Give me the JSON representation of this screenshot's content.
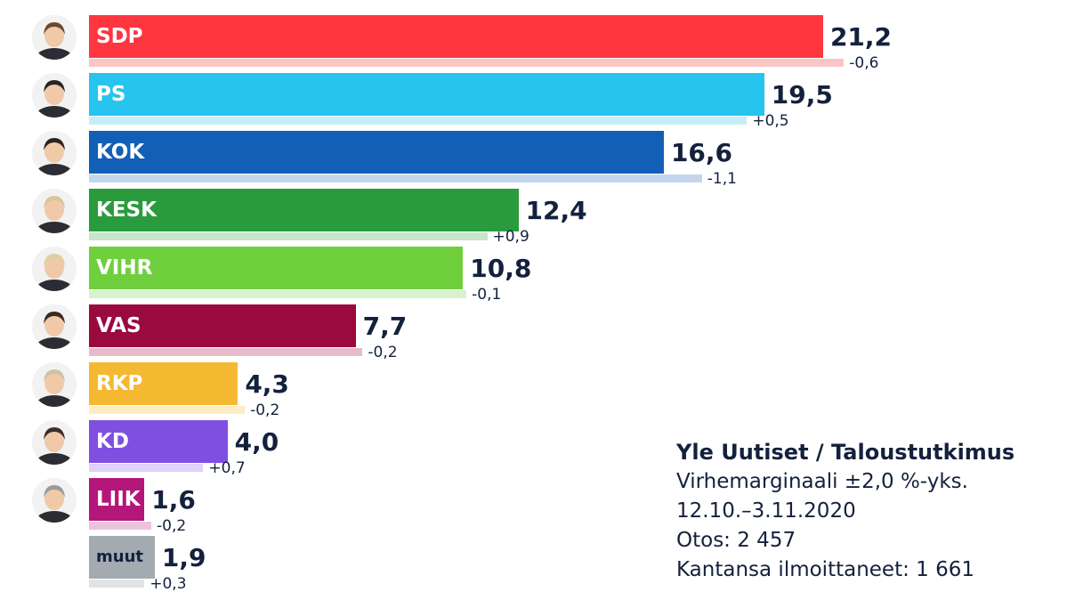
{
  "chart_data": {
    "type": "bar",
    "orientation": "horizontal",
    "categories": [
      "SDP",
      "PS",
      "KOK",
      "KESK",
      "VIHR",
      "VAS",
      "RKP",
      "KD",
      "LIIK",
      "muut"
    ],
    "series": [
      {
        "values": [
          21.2,
          19.5,
          16.6,
          12.4,
          10.8,
          7.7,
          4.3,
          4.0,
          1.6,
          1.9
        ],
        "value_labels": [
          "21,2",
          "19,5",
          "16,6",
          "12,4",
          "10,8",
          "7,7",
          "4,3",
          "4,0",
          "1,6",
          "1,9"
        ]
      },
      {
        "values": [
          21.8,
          19.0,
          17.7,
          11.5,
          10.9,
          7.9,
          4.5,
          3.3,
          1.8,
          1.6
        ],
        "change_values": [
          -0.6,
          0.5,
          -1.1,
          0.9,
          -0.1,
          -0.2,
          -0.2,
          0.7,
          -0.2,
          0.3
        ],
        "change_labels": [
          "-0,6",
          "+0,5",
          "-1,1",
          "+0,9",
          "-0,1",
          "-0,2",
          "-0,2",
          "+0,7",
          "-0,2",
          "+0,3"
        ]
      }
    ],
    "colors": [
      "#fd3640",
      "#26c4ee",
      "#125fb6",
      "#2a9b3c",
      "#6fcf3d",
      "#9b0a3e",
      "#f5b931",
      "#7f4fe2",
      "#b5167a",
      "#a3aab0"
    ],
    "change_colors": [
      "#fbc5c6",
      "#c5eefa",
      "#c4d6ee",
      "#c6e5cb",
      "#d8f2cb",
      "#e6bccb",
      "#fdecc4",
      "#dfd1f7",
      "#ecc2de",
      "#e1e4e6"
    ],
    "label_text_colors": [
      "#ffffff",
      "#ffffff",
      "#ffffff",
      "#ffffff",
      "#ffffff",
      "#ffffff",
      "#ffffff",
      "#ffffff",
      "#ffffff",
      "#14213d"
    ],
    "avatars": [
      "leader-photo-icon",
      "leader-photo-icon",
      "leader-photo-icon",
      "leader-photo-icon",
      "leader-photo-icon",
      "leader-photo-icon",
      "leader-photo-icon",
      "leader-photo-icon",
      "leader-photo-icon",
      null
    ],
    "xlim": [
      0,
      23
    ],
    "grid": false,
    "legend": "none",
    "text_color": "#14213d"
  },
  "source": {
    "title": "Yle Uutiset / Taloustutkimus",
    "margin": "Virhemarginaali ±2,0 %-yks.",
    "dates": "12.10.–3.11.2020",
    "sample": "Otos: 2 457",
    "declared": "Kantansa ilmoittaneet: 1 661"
  }
}
